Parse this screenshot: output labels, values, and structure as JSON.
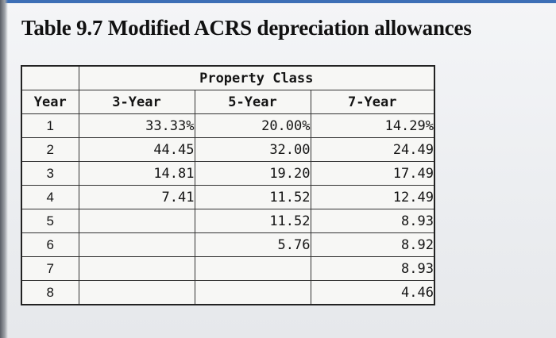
{
  "title": "Table 9.7 Modified ACRS depreciation allowances",
  "table": {
    "group_header": "Property Class",
    "year_header": "Year",
    "columns": [
      "3-Year",
      "5-Year",
      "7-Year"
    ],
    "rows": [
      {
        "year": "1",
        "v3": "33.33%",
        "v5": "20.00%",
        "v7": "14.29%"
      },
      {
        "year": "2",
        "v3": "44.45",
        "v5": "32.00",
        "v7": "24.49"
      },
      {
        "year": "3",
        "v3": "14.81",
        "v5": "19.20",
        "v7": "17.49"
      },
      {
        "year": "4",
        "v3": "7.41",
        "v5": "11.52",
        "v7": "12.49"
      },
      {
        "year": "5",
        "v3": "",
        "v5": "11.52",
        "v7": "8.93"
      },
      {
        "year": "6",
        "v3": "",
        "v5": "5.76",
        "v7": "8.92"
      },
      {
        "year": "7",
        "v3": "",
        "v5": "",
        "v7": "8.93"
      },
      {
        "year": "8",
        "v3": "",
        "v5": "",
        "v7": "4.46"
      }
    ]
  }
}
